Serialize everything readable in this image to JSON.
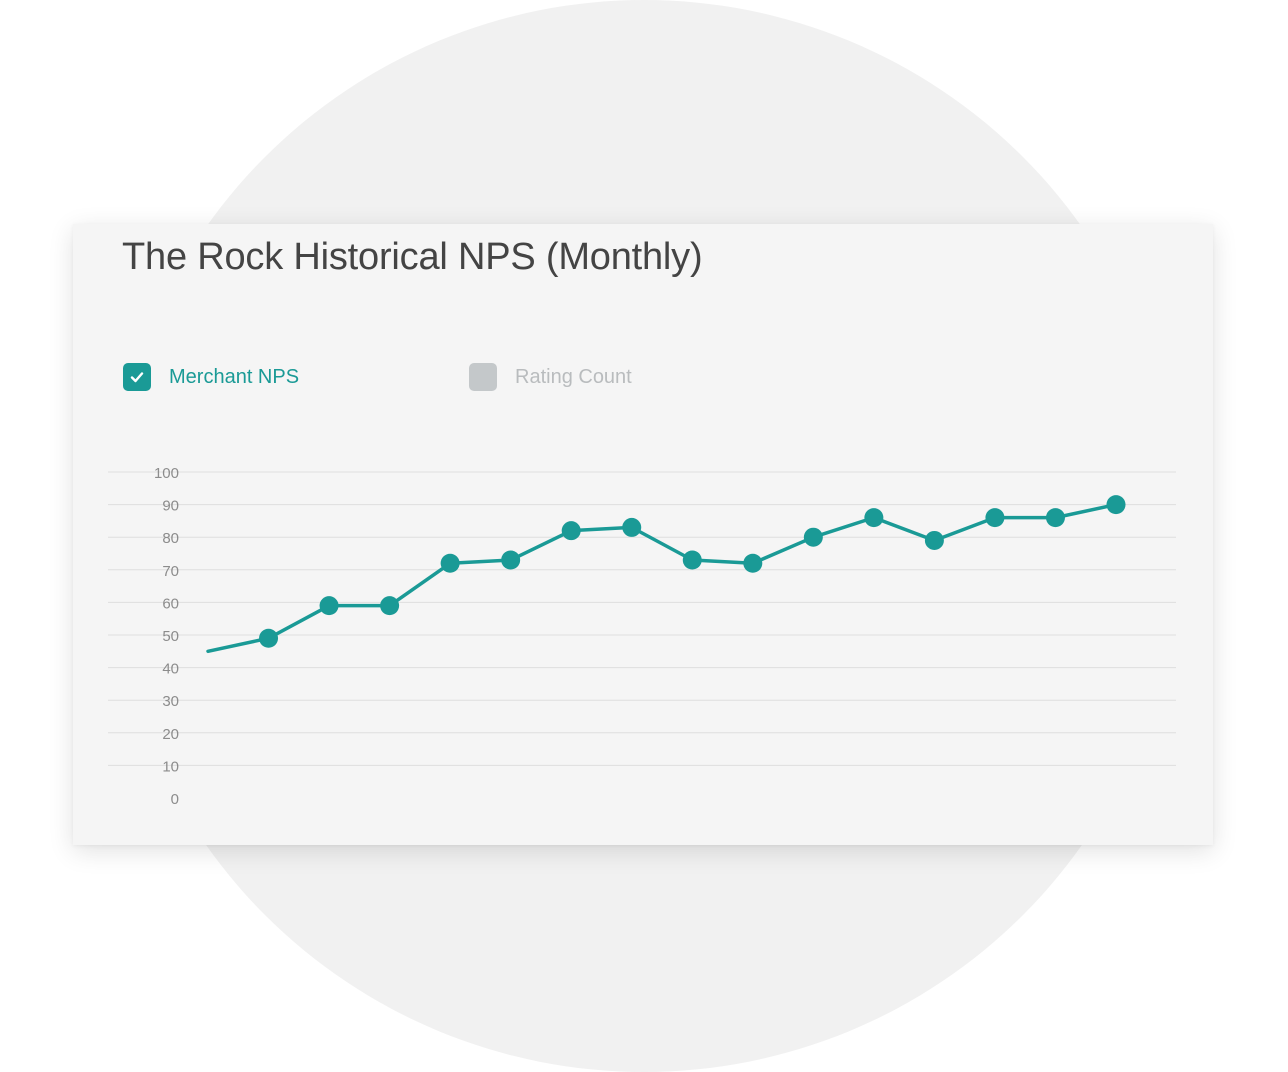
{
  "card": {
    "title": "The Rock Historical NPS (Monthly)"
  },
  "legend": [
    {
      "label": "Merchant NPS",
      "checked": true,
      "color": "#1a9a96",
      "icon": "check-icon"
    },
    {
      "label": "Rating Count",
      "checked": false,
      "color": "#c4c8ca"
    }
  ],
  "chart_data": {
    "type": "line",
    "title": "The Rock Historical NPS (Monthly)",
    "xlabel": "",
    "ylabel": "",
    "ylim": [
      0,
      100
    ],
    "yticks": [
      0,
      10,
      20,
      30,
      40,
      50,
      60,
      70,
      80,
      90,
      100
    ],
    "grid": true,
    "x": [
      0,
      1,
      2,
      3,
      4,
      5,
      6,
      7,
      8,
      9,
      10,
      11,
      12,
      13,
      14,
      15
    ],
    "series": [
      {
        "name": "Merchant NPS",
        "color": "#1a9a96",
        "first_point_marker": false,
        "values": [
          45,
          49,
          59,
          59,
          72,
          73,
          82,
          83,
          73,
          72,
          80,
          86,
          79,
          86,
          86,
          90
        ]
      }
    ]
  }
}
